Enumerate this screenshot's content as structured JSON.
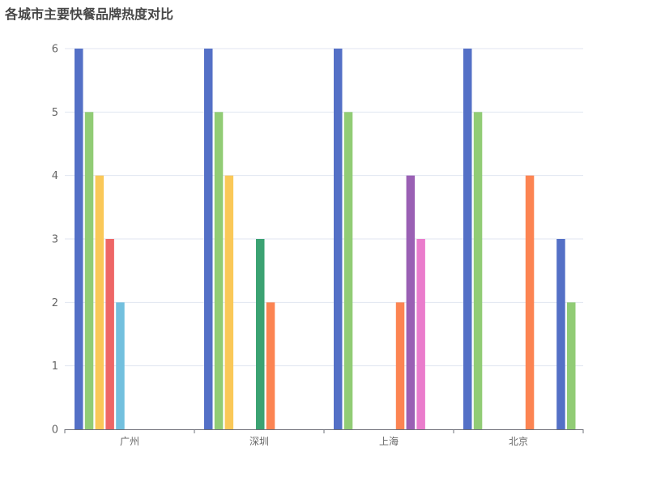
{
  "chart_data": {
    "type": "bar",
    "title": "各城市主要快餐品牌热度对比",
    "categories": [
      "广州",
      "深圳",
      "上海",
      "北京"
    ],
    "ylim": [
      0,
      6
    ],
    "yticks": [
      0,
      1,
      2,
      3,
      4,
      5,
      6
    ],
    "grid": true,
    "groups": [
      {
        "category": "广州",
        "bars": [
          {
            "value": 6,
            "color": "#5470c6"
          },
          {
            "value": 5,
            "color": "#91cc75"
          },
          {
            "value": 4,
            "color": "#fac858"
          },
          {
            "value": 3,
            "color": "#ee6666"
          },
          {
            "value": 2,
            "color": "#73c0de"
          },
          {
            "value": 0,
            "color": "#3ba272"
          },
          {
            "value": 0,
            "color": "#fc8452"
          },
          {
            "value": 0,
            "color": "#9a60b4"
          },
          {
            "value": 0,
            "color": "#ea7ccc"
          }
        ]
      },
      {
        "category": "深圳",
        "bars": [
          {
            "value": 6,
            "color": "#5470c6"
          },
          {
            "value": 5,
            "color": "#91cc75"
          },
          {
            "value": 4,
            "color": "#fac858"
          },
          {
            "value": 0,
            "color": "#ee6666"
          },
          {
            "value": 0,
            "color": "#73c0de"
          },
          {
            "value": 3,
            "color": "#3ba272"
          },
          {
            "value": 2,
            "color": "#fc8452"
          },
          {
            "value": 0,
            "color": "#9a60b4"
          },
          {
            "value": 0,
            "color": "#ea7ccc"
          }
        ]
      },
      {
        "category": "上海",
        "bars": [
          {
            "value": 6,
            "color": "#5470c6"
          },
          {
            "value": 5,
            "color": "#91cc75"
          },
          {
            "value": 0,
            "color": "#fac858"
          },
          {
            "value": 0,
            "color": "#ee6666"
          },
          {
            "value": 0,
            "color": "#73c0de"
          },
          {
            "value": 0,
            "color": "#3ba272"
          },
          {
            "value": 2,
            "color": "#fc8452"
          },
          {
            "value": 4,
            "color": "#9a60b4"
          },
          {
            "value": 3,
            "color": "#ea7ccc"
          }
        ]
      },
      {
        "category": "北京",
        "bars": [
          {
            "value": 6,
            "color": "#5470c6"
          },
          {
            "value": 5,
            "color": "#91cc75"
          },
          {
            "value": 0,
            "color": "#fac858"
          },
          {
            "value": 0,
            "color": "#ee6666"
          },
          {
            "value": 0,
            "color": "#73c0de"
          },
          {
            "value": 0,
            "color": "#3ba272"
          },
          {
            "value": 4,
            "color": "#fc8452"
          },
          {
            "value": 0,
            "color": "#9a60b4"
          },
          {
            "value": 0,
            "color": "#ea7ccc"
          },
          {
            "value": 3,
            "color": "#5470c6"
          },
          {
            "value": 2,
            "color": "#91cc75"
          }
        ]
      }
    ]
  }
}
